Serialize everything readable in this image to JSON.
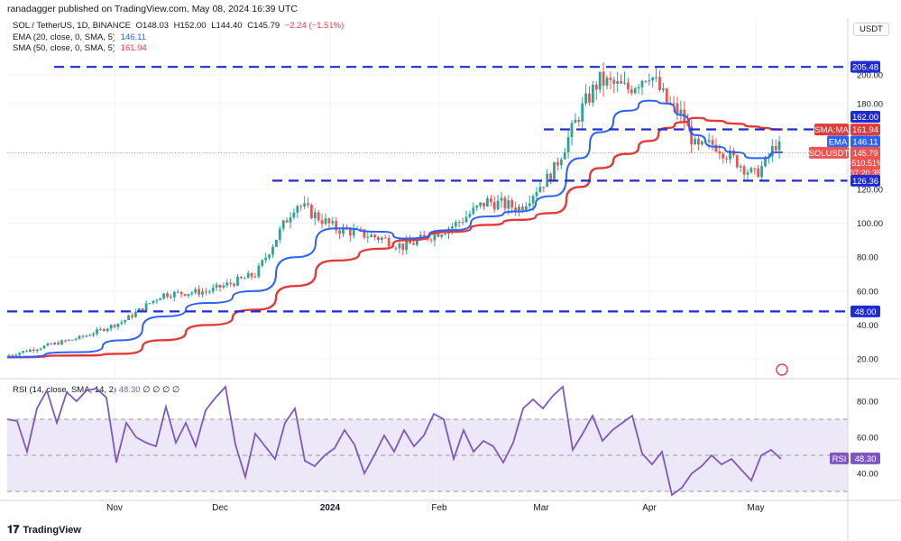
{
  "header": {
    "publisher": "ranadagger published on TradingView.com, May 08, 2024 16:39 UTC"
  },
  "legend": {
    "symbol": "SOL / TetherUS, 1D, BINANCE",
    "open": "O148.03",
    "high": "H152.00",
    "low": "L144.40",
    "close": "C145.79",
    "change": "−2.24 (−1.51%)",
    "ema_label": "EMA (20, close, 0, SMA, 5)",
    "ema_value": "146.11",
    "sma_label": "SMA (50, close, 0, SMA, 5)",
    "sma_value": "161.94"
  },
  "rsi_legend": {
    "label": "RSI (14, close, SMA, 14, 2)",
    "value": "48.30",
    "rest": "∅  ∅  ∅  ∅"
  },
  "currency": "USDT",
  "footer": {
    "brand": "TradingView"
  },
  "colors": {
    "candle_up": "#26a69a",
    "candle_down": "#ef5350",
    "ema": "#2962ff",
    "sma": "#e53935",
    "hline": "#1e2bd6",
    "rsi": "#7e57c2",
    "rsi_band": "#e9e2f5",
    "grid": "#f0f3fa"
  },
  "price_axis": {
    "ticks": [
      "20.00",
      "40.00",
      "60.00",
      "80.00",
      "100.00",
      "120.00",
      "180.00",
      "200.00"
    ]
  },
  "rsi_axis": {
    "ticks": [
      "40.00",
      "60.00",
      "80.00"
    ]
  },
  "time_axis": {
    "labels": [
      "Nov",
      "Dec",
      "2024",
      "Feb",
      "Mar",
      "Apr",
      "May"
    ]
  },
  "price_tags": {
    "l205": "205.48",
    "l162": "162.00",
    "sma": "161.94",
    "sma_name": "SMA:MA",
    "ema": "146.11",
    "ema_name": "EMA",
    "last": "145.79",
    "sym": "SOLUSDT",
    "pct": "+510.51%",
    "countdown": "07:20:35",
    "l126": "126.36",
    "l48": "48.00",
    "rsi": "48.30",
    "rsi_name": "RSI"
  },
  "chart_data": {
    "type": "line",
    "title": "SOL / TetherUS, 1D, BINANCE",
    "x": [
      "2023-10-06",
      "2023-10-27",
      "2023-11-07",
      "2023-11-18",
      "2023-12-01",
      "2023-12-14",
      "2023-12-25",
      "2024-01-05",
      "2024-01-18",
      "2024-01-24",
      "2024-02-07",
      "2024-02-16",
      "2024-02-25",
      "2024-03-05",
      "2024-03-13",
      "2024-03-18",
      "2024-03-26",
      "2024-04-01",
      "2024-04-06",
      "2024-04-10",
      "2024-04-14",
      "2024-04-19",
      "2024-04-25",
      "2024-04-30",
      "2024-05-03",
      "2024-05-06",
      "2024-05-08"
    ],
    "series": [
      {
        "name": "SOL / TetherUS",
        "values": [
          22,
          33,
          42,
          58,
          60,
          70,
          112,
          97,
          91,
          86,
          99,
          113,
          109,
          131,
          175,
          196,
          190,
          202,
          180,
          172,
          148,
          152,
          140,
          130,
          138,
          152,
          146
        ]
      },
      {
        "name": "EMA (20, close, 0, SMA, 5)",
        "values": [
          21,
          24,
          31,
          45,
          53,
          60,
          80,
          97,
          95,
          91,
          96,
          104,
          107,
          116,
          142,
          160,
          175,
          182,
          180,
          172,
          158,
          150,
          146,
          142,
          142,
          146,
          146
        ]
      },
      {
        "name": "SMA (50, close, 0, SMA, 5)",
        "values": [
          21,
          22,
          23,
          31,
          40,
          49,
          63,
          78,
          85,
          90,
          95,
          99,
          102,
          106,
          122,
          135,
          145,
          154,
          163,
          167,
          170,
          168,
          166,
          164,
          163,
          162,
          162
        ]
      }
    ],
    "horizontal_lines": [
      205.48,
      162.0,
      126.36,
      48.0
    ],
    "ylim": [
      10,
      215
    ],
    "rsi": {
      "name": "RSI (14, close, SMA, 14, 2)",
      "values": [
        70,
        69,
        52,
        76,
        86,
        68,
        85,
        80,
        86,
        87,
        82,
        46,
        68,
        60,
        57,
        55,
        77,
        57,
        68,
        55,
        75,
        82,
        88,
        56,
        38,
        62,
        55,
        48,
        68,
        76,
        47,
        44,
        50,
        54,
        64,
        56,
        40,
        50,
        61,
        52,
        64,
        55,
        61,
        73,
        70,
        48,
        64,
        52,
        58,
        55,
        46,
        57,
        76,
        81,
        76,
        83,
        88,
        53,
        62,
        72,
        58,
        64,
        68,
        72,
        51,
        45,
        52,
        28,
        32,
        40,
        44,
        50,
        45,
        48,
        42,
        36,
        50,
        53,
        48
      ],
      "ylim": [
        25,
        95
      ],
      "band": [
        30,
        70
      ],
      "last": 48.3
    }
  }
}
